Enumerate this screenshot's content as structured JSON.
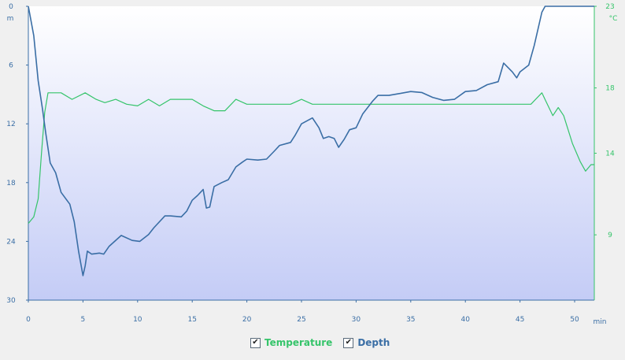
{
  "chart_data": {
    "type": "line",
    "x_unit": "min",
    "xlim": [
      0,
      51.8
    ],
    "x_ticks": [
      0,
      5,
      10,
      15,
      20,
      25,
      30,
      35,
      40,
      45,
      50
    ],
    "depth_axis": {
      "unit": "m",
      "ylim": [
        0,
        30
      ],
      "ticks": [
        0,
        6,
        12,
        18,
        24,
        30
      ],
      "inverted": true
    },
    "temperature_axis": {
      "unit": "°C",
      "ylim": [
        5,
        23
      ],
      "ticks": [
        9,
        14,
        18,
        23
      ]
    },
    "series": [
      {
        "name": "Depth",
        "axis": "depth",
        "color": "#3a6ea5",
        "points": [
          [
            0,
            0
          ],
          [
            0.5,
            3
          ],
          [
            0.9,
            7.6
          ],
          [
            1.3,
            10.5
          ],
          [
            1.6,
            13
          ],
          [
            2,
            16
          ],
          [
            2.5,
            17
          ],
          [
            3,
            19
          ],
          [
            3.8,
            20.2
          ],
          [
            4.2,
            22
          ],
          [
            4.6,
            25
          ],
          [
            5,
            27.5
          ],
          [
            5.2,
            26.5
          ],
          [
            5.4,
            25
          ],
          [
            5.8,
            25.3
          ],
          [
            6.5,
            25.2
          ],
          [
            6.9,
            25.3
          ],
          [
            7.4,
            24.5
          ],
          [
            8.5,
            23.4
          ],
          [
            9.5,
            23.9
          ],
          [
            10.2,
            24
          ],
          [
            11,
            23.3
          ],
          [
            11.5,
            22.6
          ],
          [
            12.5,
            21.4
          ],
          [
            13,
            21.4
          ],
          [
            14,
            21.5
          ],
          [
            14.5,
            20.9
          ],
          [
            15,
            19.8
          ],
          [
            15.5,
            19.3
          ],
          [
            16,
            18.7
          ],
          [
            16.3,
            20.6
          ],
          [
            16.6,
            20.5
          ],
          [
            17,
            18.4
          ],
          [
            17.7,
            18
          ],
          [
            18.3,
            17.7
          ],
          [
            19,
            16.4
          ],
          [
            19.6,
            15.9
          ],
          [
            20,
            15.6
          ],
          [
            21,
            15.7
          ],
          [
            21.8,
            15.6
          ],
          [
            22.5,
            14.8
          ],
          [
            23,
            14.2
          ],
          [
            24,
            13.9
          ],
          [
            24.4,
            13.2
          ],
          [
            25,
            12
          ],
          [
            26,
            11.4
          ],
          [
            26.6,
            12.4
          ],
          [
            27,
            13.5
          ],
          [
            27.5,
            13.3
          ],
          [
            28,
            13.5
          ],
          [
            28.4,
            14.4
          ],
          [
            28.9,
            13.6
          ],
          [
            29.4,
            12.6
          ],
          [
            30,
            12.4
          ],
          [
            30.6,
            11
          ],
          [
            31.5,
            9.7
          ],
          [
            32,
            9.1
          ],
          [
            33,
            9.1
          ],
          [
            34,
            8.9
          ],
          [
            35,
            8.7
          ],
          [
            36,
            8.8
          ],
          [
            37,
            9.3
          ],
          [
            38,
            9.6
          ],
          [
            39,
            9.5
          ],
          [
            40,
            8.7
          ],
          [
            41,
            8.6
          ],
          [
            42,
            8
          ],
          [
            43,
            7.7
          ],
          [
            43.5,
            5.8
          ],
          [
            44.3,
            6.7
          ],
          [
            44.7,
            7.3
          ],
          [
            45,
            6.7
          ],
          [
            45.8,
            6
          ],
          [
            46.3,
            4
          ],
          [
            47,
            0.6
          ],
          [
            47.3,
            0
          ],
          [
            51.8,
            0
          ]
        ]
      },
      {
        "name": "Temperature",
        "axis": "temperature",
        "color": "#35c46a",
        "points": [
          [
            0,
            9.7
          ],
          [
            0.5,
            10.1
          ],
          [
            0.9,
            11.2
          ],
          [
            1.2,
            14
          ],
          [
            1.5,
            16.5
          ],
          [
            1.8,
            17.7
          ],
          [
            3,
            17.7
          ],
          [
            4,
            17.3
          ],
          [
            5.2,
            17.7
          ],
          [
            6.2,
            17.3
          ],
          [
            7,
            17.1
          ],
          [
            8,
            17.3
          ],
          [
            9,
            17
          ],
          [
            10,
            16.9
          ],
          [
            11,
            17.3
          ],
          [
            12,
            16.9
          ],
          [
            13,
            17.3
          ],
          [
            14,
            17.3
          ],
          [
            15,
            17.3
          ],
          [
            16,
            16.9
          ],
          [
            17,
            16.6
          ],
          [
            18,
            16.6
          ],
          [
            19,
            17.3
          ],
          [
            20,
            17
          ],
          [
            21,
            17
          ],
          [
            24,
            17
          ],
          [
            25,
            17.3
          ],
          [
            26,
            17
          ],
          [
            30,
            17
          ],
          [
            35,
            17
          ],
          [
            40,
            17
          ],
          [
            44,
            17
          ],
          [
            46,
            17
          ],
          [
            47,
            17.7
          ],
          [
            47.5,
            17
          ],
          [
            48,
            16.3
          ],
          [
            48.5,
            16.8
          ],
          [
            49,
            16.3
          ],
          [
            49.8,
            14.6
          ],
          [
            50.5,
            13.5
          ],
          [
            51,
            12.9
          ],
          [
            51.5,
            13.3
          ],
          [
            51.8,
            13.3
          ]
        ]
      }
    ],
    "legend_position": "bottom-center",
    "grid": false
  },
  "legend": {
    "temperature_label": "Temperature",
    "depth_label": "Depth",
    "temperature_checked": true,
    "depth_checked": true,
    "check_glyph": "✔"
  },
  "colors": {
    "depth": "#3a6ea5",
    "temperature": "#35c46a",
    "plot_top": "#ffffff",
    "plot_bottom": "#c4ccf6"
  }
}
